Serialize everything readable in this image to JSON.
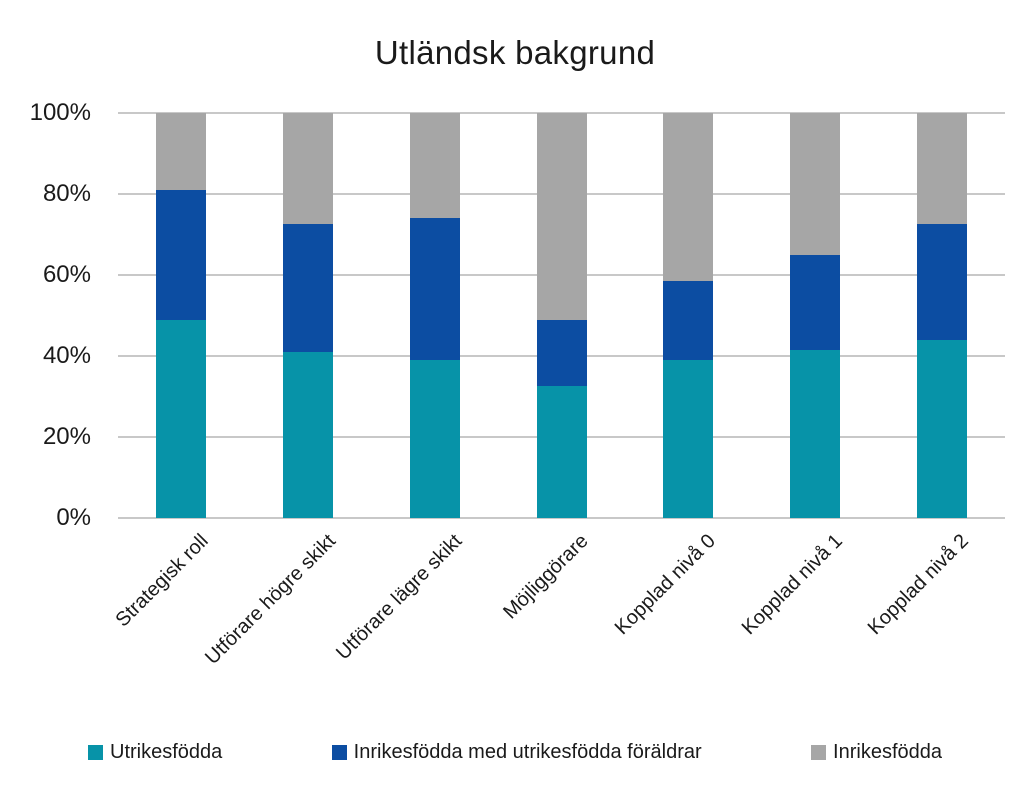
{
  "title": "Utländsk bakgrund",
  "colors": {
    "series_teal": "#0793A8",
    "series_blue": "#0C4DA2",
    "series_gray": "#A6A6A6",
    "gridline": "#C8C8C8",
    "text": "#1A1A1A",
    "background": "#FFFFFF"
  },
  "chart_data": {
    "type": "bar",
    "stacked": true,
    "stacked_total": 100,
    "title": "Utländsk bakgrund",
    "xlabel": "",
    "ylabel": "",
    "ylim": [
      0,
      100
    ],
    "grid": true,
    "legend_position": "bottom",
    "y_ticks": [
      "0%",
      "20%",
      "40%",
      "60%",
      "80%",
      "100%"
    ],
    "categories": [
      "Strategisk roll",
      "Utförare högre skikt",
      "Utförare lägre skikt",
      "Möjliggörare",
      "Kopplad nivå 0",
      "Kopplad nivå 1",
      "Kopplad nivå 2"
    ],
    "series": [
      {
        "name": "Utrikesfödda",
        "color": "#0793A8",
        "values": [
          49,
          41,
          39,
          32.5,
          39,
          41.5,
          44
        ]
      },
      {
        "name": "Inrikesfödda med utrikesfödda föräldrar",
        "color": "#0C4DA2",
        "values": [
          32,
          31.5,
          35,
          16.5,
          19.5,
          23.5,
          28.5
        ]
      },
      {
        "name": "Inrikesfödda",
        "color": "#A6A6A6",
        "values": [
          19,
          27.5,
          26,
          51,
          41.5,
          35,
          27.5
        ]
      }
    ]
  }
}
